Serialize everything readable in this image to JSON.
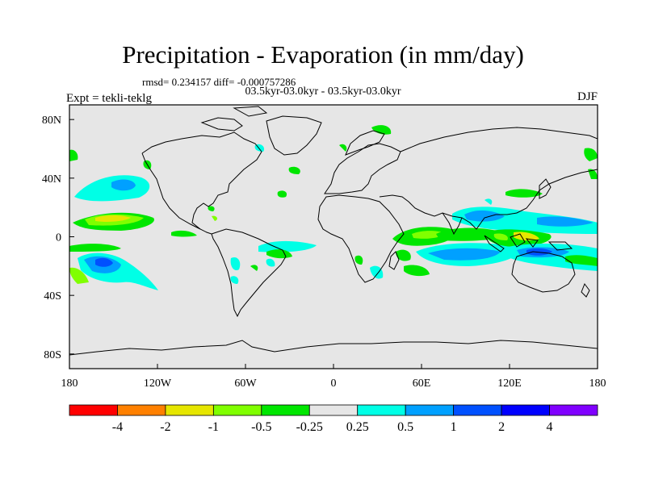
{
  "chart_data": {
    "type": "heatmap",
    "title": "Precipitation - Evaporation (in mm/day)",
    "stats_text": "rmsd= 0.234157 diff= -0.000757286",
    "subtitle": "03.5kyr-03.0kyr - 03.5kyr-03.0kyr",
    "left_label": "Expt = tekli-teklg",
    "right_label": "DJF",
    "x_ticks": [
      "180",
      "120W",
      "60W",
      "0",
      "60E",
      "120E",
      "180"
    ],
    "y_ticks": [
      "80N",
      "40N",
      "0",
      "40S",
      "80S"
    ],
    "xlim": [
      -180,
      180
    ],
    "ylim": [
      -90,
      90
    ],
    "colorbar": {
      "labels": [
        "-4",
        "-2",
        "-1",
        "-0.5",
        "-0.25",
        "0.25",
        "0.5",
        "1",
        "2",
        "4"
      ],
      "colors": [
        "#ff0000",
        "#ff8000",
        "#e6e600",
        "#80ff00",
        "#00e600",
        "#e6e6e6",
        "#00ffe6",
        "#00a0ff",
        "#0050ff",
        "#0000ff",
        "#8000ff"
      ]
    }
  }
}
